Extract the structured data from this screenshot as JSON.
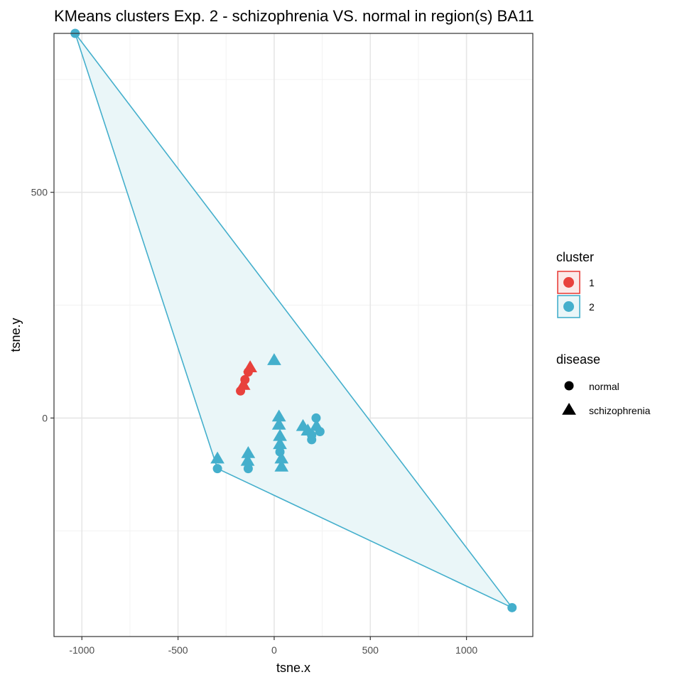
{
  "chart_data": {
    "type": "scatter",
    "title": "KMeans clusters Exp. 2 - schizophrenia VS. normal in region(s) BA11",
    "xlabel": "tsne.x",
    "ylabel": "tsne.y",
    "xlim": [
      -1145,
      1345
    ],
    "ylim": [
      -484,
      852
    ],
    "x_ticks": [
      -1000,
      -500,
      0,
      500,
      1000
    ],
    "x_tick_labels": [
      "-1000",
      "-500",
      "0",
      "500",
      "1000"
    ],
    "y_ticks": [
      0,
      500
    ],
    "y_tick_labels": [
      "0",
      "500"
    ],
    "x_minor_ticks": [
      -750,
      -250,
      250,
      750
    ],
    "y_minor_ticks": [
      -250,
      250,
      750
    ],
    "grid": true,
    "cluster_colors": {
      "1": "#e8413c",
      "2": "#44afcc"
    },
    "hull_fill": "#eaf6f8",
    "points": [
      {
        "x": 0,
        "y": 128,
        "cluster": "2",
        "disease": "schizophrenia"
      },
      {
        "x": -1035,
        "y": 852,
        "cluster": "2",
        "disease": "normal"
      },
      {
        "x": 1237,
        "y": -420,
        "cluster": "2",
        "disease": "normal"
      },
      {
        "x": -295,
        "y": -90,
        "cluster": "2",
        "disease": "schizophrenia"
      },
      {
        "x": -295,
        "y": -112,
        "cluster": "2",
        "disease": "normal"
      },
      {
        "x": -135,
        "y": -78,
        "cluster": "2",
        "disease": "schizophrenia"
      },
      {
        "x": -138,
        "y": -95,
        "cluster": "2",
        "disease": "schizophrenia"
      },
      {
        "x": -135,
        "y": -112,
        "cluster": "2",
        "disease": "normal"
      },
      {
        "x": 25,
        "y": 3,
        "cluster": "2",
        "disease": "schizophrenia"
      },
      {
        "x": 25,
        "y": -15,
        "cluster": "2",
        "disease": "schizophrenia"
      },
      {
        "x": 30,
        "y": -40,
        "cluster": "2",
        "disease": "schizophrenia"
      },
      {
        "x": 30,
        "y": -58,
        "cluster": "2",
        "disease": "schizophrenia"
      },
      {
        "x": 30,
        "y": -75,
        "cluster": "2",
        "disease": "normal"
      },
      {
        "x": 38,
        "y": -90,
        "cluster": "2",
        "disease": "schizophrenia"
      },
      {
        "x": 38,
        "y": -108,
        "cluster": "2",
        "disease": "schizophrenia"
      },
      {
        "x": 150,
        "y": -18,
        "cluster": "2",
        "disease": "schizophrenia"
      },
      {
        "x": 175,
        "y": -28,
        "cluster": "2",
        "disease": "schizophrenia"
      },
      {
        "x": 218,
        "y": 0,
        "cluster": "2",
        "disease": "normal"
      },
      {
        "x": 220,
        "y": -18,
        "cluster": "2",
        "disease": "schizophrenia"
      },
      {
        "x": 238,
        "y": -30,
        "cluster": "2",
        "disease": "normal"
      },
      {
        "x": 195,
        "y": -48,
        "cluster": "2",
        "disease": "normal"
      },
      {
        "x": 195,
        "y": -38,
        "cluster": "2",
        "disease": "normal"
      },
      {
        "x": -125,
        "y": 112,
        "cluster": "1",
        "disease": "schizophrenia"
      },
      {
        "x": -135,
        "y": 102,
        "cluster": "1",
        "disease": "normal"
      },
      {
        "x": -152,
        "y": 85,
        "cluster": "1",
        "disease": "normal"
      },
      {
        "x": -160,
        "y": 73,
        "cluster": "1",
        "disease": "schizophrenia"
      },
      {
        "x": -175,
        "y": 60,
        "cluster": "1",
        "disease": "normal"
      }
    ],
    "hull": [
      {
        "x": -1035,
        "y": 852
      },
      {
        "x": -295,
        "y": -112
      },
      {
        "x": 1237,
        "y": -420
      }
    ],
    "legends": [
      {
        "title": "cluster",
        "entries": [
          "1",
          "2"
        ]
      },
      {
        "title": "disease",
        "entries": [
          "normal",
          "schizophrenia"
        ]
      }
    ]
  }
}
